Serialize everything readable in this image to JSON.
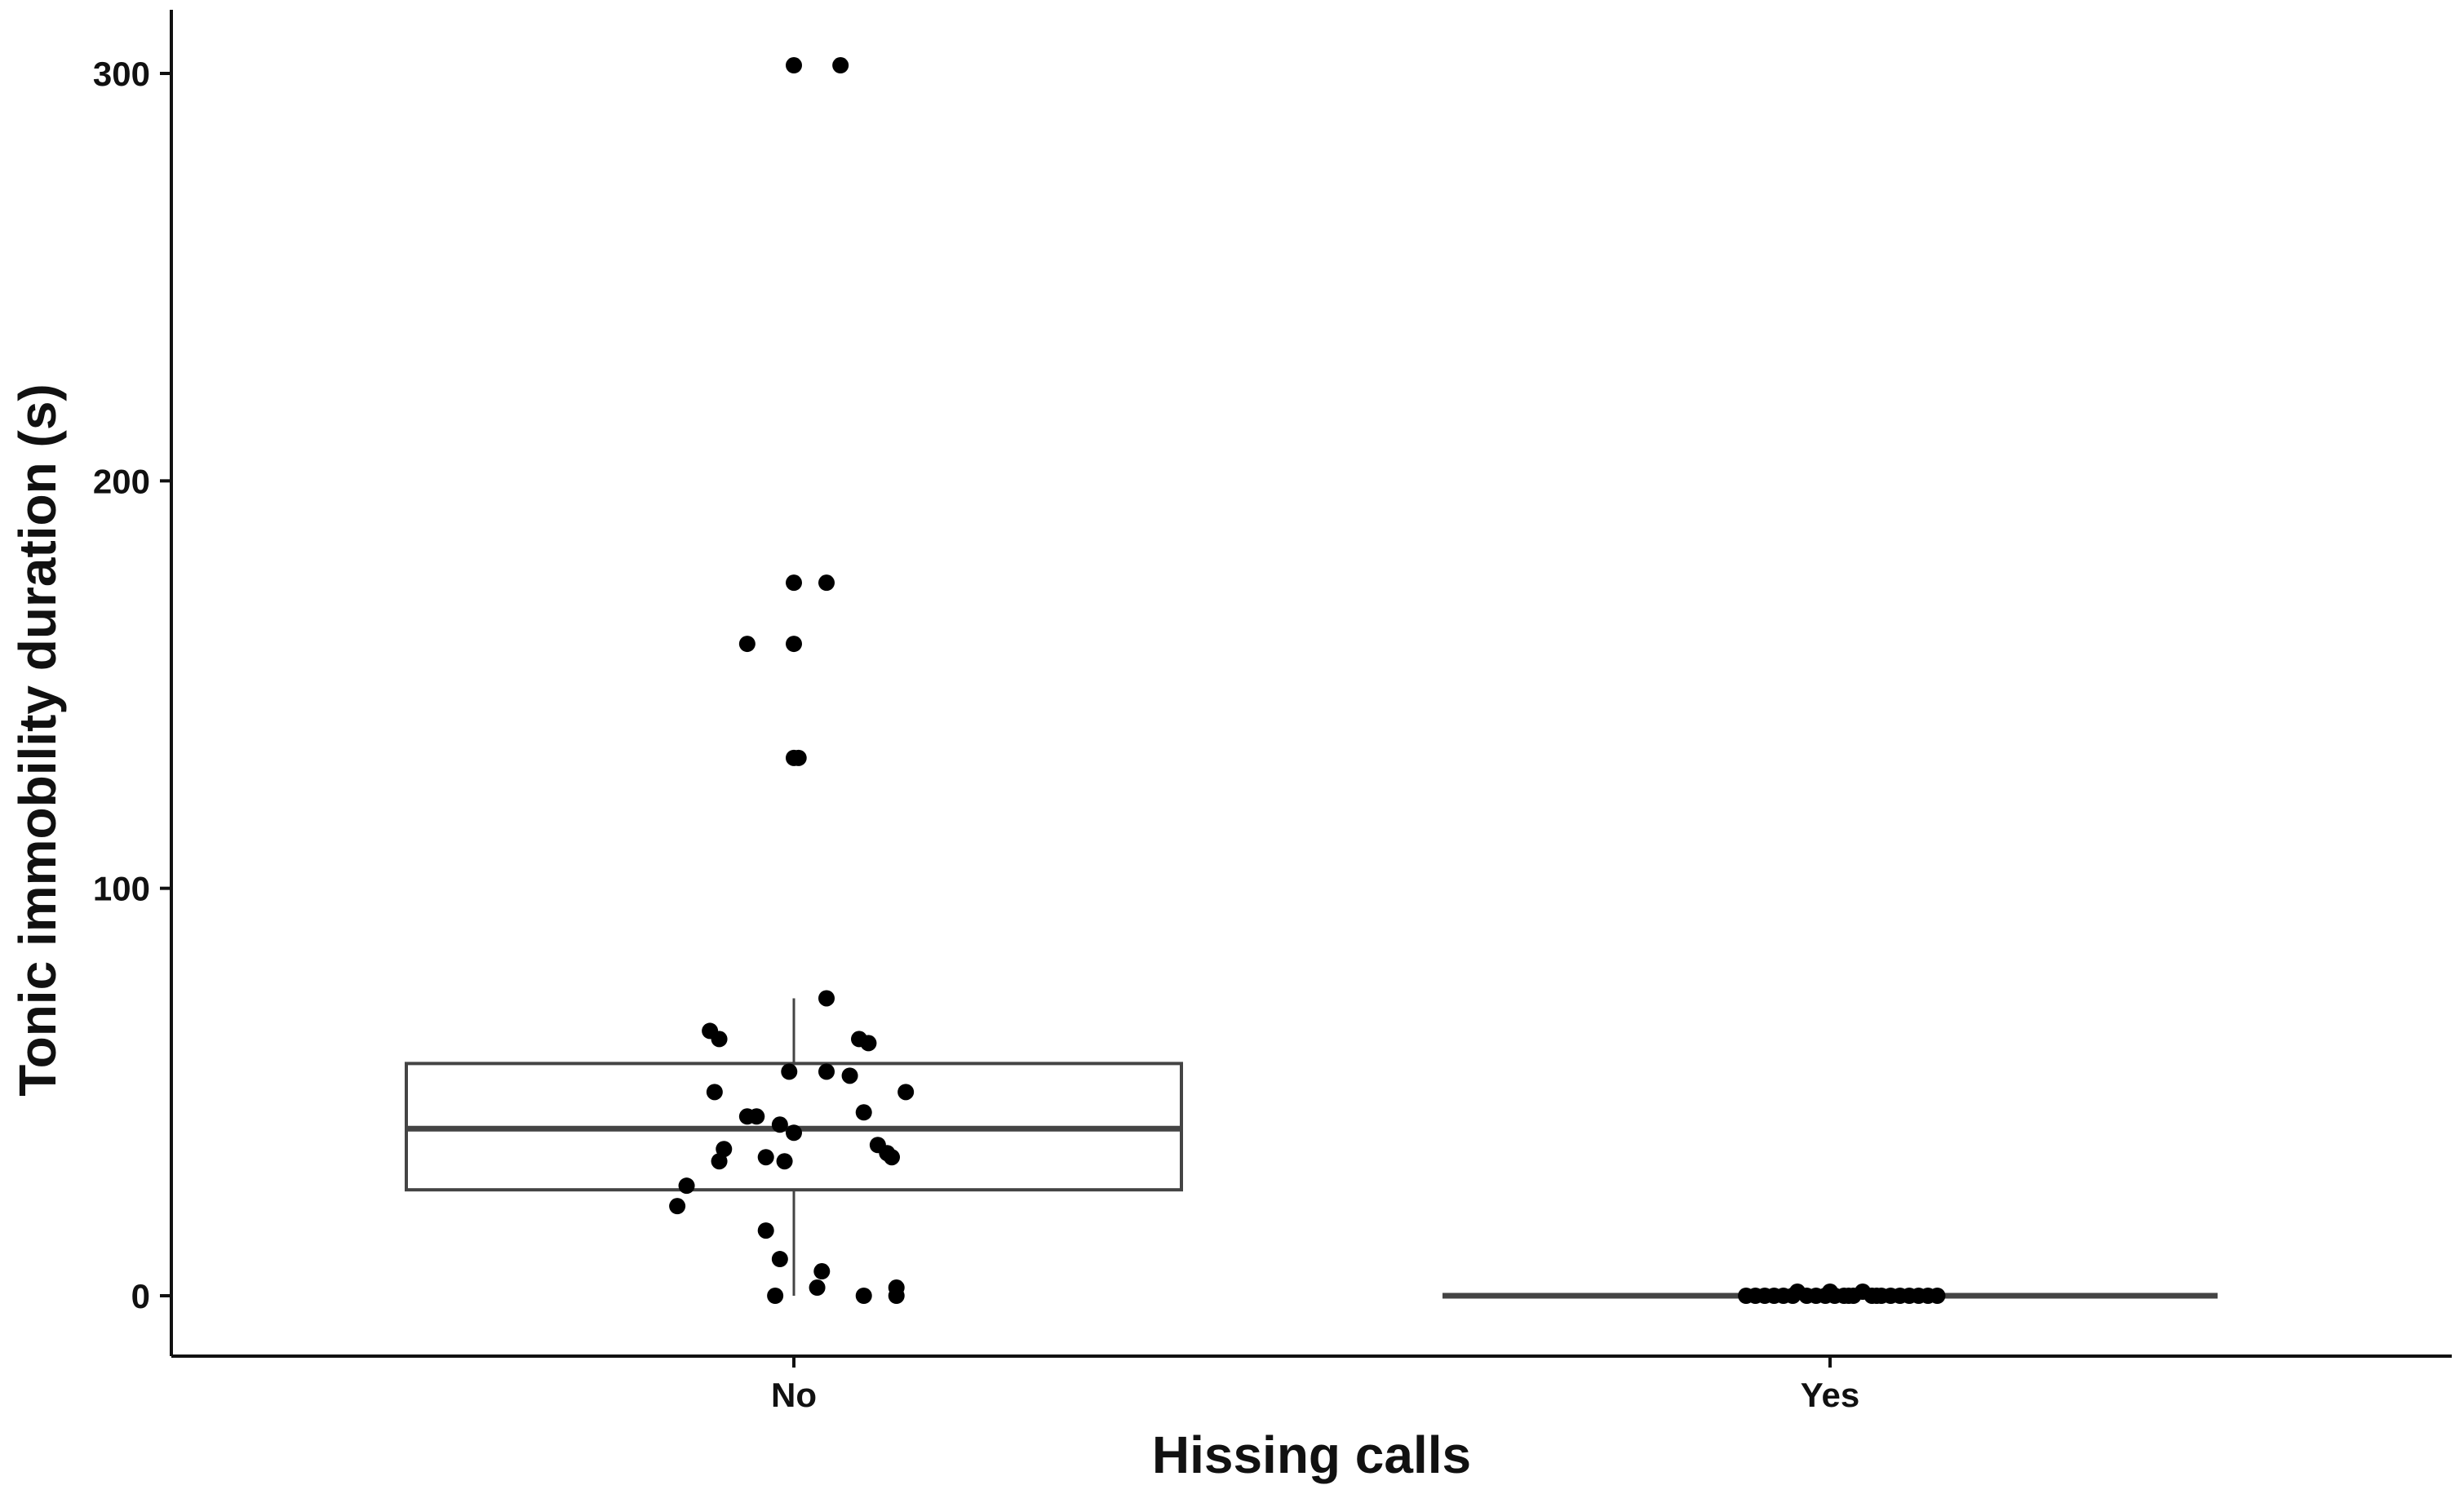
{
  "chart_data": {
    "type": "box",
    "title": "",
    "xlabel": "Hissing calls",
    "ylabel": "Tonic immobility duration (s)",
    "categories": [
      "No",
      "Yes"
    ],
    "ylim": [
      -15,
      318
    ],
    "yticks": [
      0,
      100,
      200,
      300
    ],
    "grid": false,
    "legend": "none",
    "colors": {
      "axis": "#111111",
      "box": "#444444",
      "point": "#000000"
    },
    "boxes": [
      {
        "category": "No",
        "whisker_low": 0,
        "q1": 26,
        "median": 41,
        "q3": 57,
        "whisker_high": 73
      },
      {
        "category": "Yes",
        "whisker_low": 0,
        "q1": 0,
        "median": 0,
        "q3": 0,
        "whisker_high": 0
      }
    ],
    "points": [
      {
        "category": "No",
        "jitter": 0.0,
        "y": 302
      },
      {
        "category": "No",
        "jitter": 0.1,
        "y": 302
      },
      {
        "category": "No",
        "jitter": 0.0,
        "y": 175
      },
      {
        "category": "No",
        "jitter": 0.07,
        "y": 175
      },
      {
        "category": "No",
        "jitter": -0.1,
        "y": 160
      },
      {
        "category": "No",
        "jitter": 0.0,
        "y": 160
      },
      {
        "category": "No",
        "jitter": 0.0,
        "y": 132
      },
      {
        "category": "No",
        "jitter": 0.01,
        "y": 132
      },
      {
        "category": "No",
        "jitter": 0.07,
        "y": 73
      },
      {
        "category": "No",
        "jitter": -0.18,
        "y": 65
      },
      {
        "category": "No",
        "jitter": -0.16,
        "y": 63
      },
      {
        "category": "No",
        "jitter": 0.14,
        "y": 63
      },
      {
        "category": "No",
        "jitter": 0.16,
        "y": 62
      },
      {
        "category": "No",
        "jitter": -0.01,
        "y": 55
      },
      {
        "category": "No",
        "jitter": 0.07,
        "y": 55
      },
      {
        "category": "No",
        "jitter": 0.12,
        "y": 54
      },
      {
        "category": "No",
        "jitter": -0.17,
        "y": 50
      },
      {
        "category": "No",
        "jitter": 0.24,
        "y": 50
      },
      {
        "category": "No",
        "jitter": -0.1,
        "y": 44
      },
      {
        "category": "No",
        "jitter": -0.08,
        "y": 44
      },
      {
        "category": "No",
        "jitter": 0.15,
        "y": 45
      },
      {
        "category": "No",
        "jitter": -0.03,
        "y": 42
      },
      {
        "category": "No",
        "jitter": 0.0,
        "y": 40
      },
      {
        "category": "No",
        "jitter": 0.18,
        "y": 37
      },
      {
        "category": "No",
        "jitter": -0.15,
        "y": 36
      },
      {
        "category": "No",
        "jitter": 0.2,
        "y": 35
      },
      {
        "category": "No",
        "jitter": 0.21,
        "y": 34
      },
      {
        "category": "No",
        "jitter": -0.16,
        "y": 33
      },
      {
        "category": "No",
        "jitter": -0.06,
        "y": 34
      },
      {
        "category": "No",
        "jitter": -0.02,
        "y": 33
      },
      {
        "category": "No",
        "jitter": -0.23,
        "y": 27
      },
      {
        "category": "No",
        "jitter": -0.25,
        "y": 22
      },
      {
        "category": "No",
        "jitter": -0.06,
        "y": 16
      },
      {
        "category": "No",
        "jitter": -0.03,
        "y": 9
      },
      {
        "category": "No",
        "jitter": 0.06,
        "y": 6
      },
      {
        "category": "No",
        "jitter": 0.05,
        "y": 2
      },
      {
        "category": "No",
        "jitter": 0.22,
        "y": 2
      },
      {
        "category": "No",
        "jitter": -0.04,
        "y": 0
      },
      {
        "category": "No",
        "jitter": 0.15,
        "y": 0
      },
      {
        "category": "No",
        "jitter": 0.22,
        "y": 0
      },
      {
        "category": "Yes",
        "jitter": -0.18,
        "y": 0
      },
      {
        "category": "Yes",
        "jitter": -0.16,
        "y": 0
      },
      {
        "category": "Yes",
        "jitter": -0.14,
        "y": 0
      },
      {
        "category": "Yes",
        "jitter": -0.12,
        "y": 0
      },
      {
        "category": "Yes",
        "jitter": -0.1,
        "y": 0
      },
      {
        "category": "Yes",
        "jitter": -0.07,
        "y": 1
      },
      {
        "category": "Yes",
        "jitter": -0.05,
        "y": 0
      },
      {
        "category": "Yes",
        "jitter": -0.03,
        "y": 0
      },
      {
        "category": "Yes",
        "jitter": -0.01,
        "y": 0
      },
      {
        "category": "Yes",
        "jitter": 0.01,
        "y": 0
      },
      {
        "category": "Yes",
        "jitter": 0.0,
        "y": 1
      },
      {
        "category": "Yes",
        "jitter": 0.03,
        "y": 0
      },
      {
        "category": "Yes",
        "jitter": 0.05,
        "y": 0
      },
      {
        "category": "Yes",
        "jitter": 0.07,
        "y": 1
      },
      {
        "category": "Yes",
        "jitter": 0.09,
        "y": 0
      },
      {
        "category": "Yes",
        "jitter": 0.11,
        "y": 0
      },
      {
        "category": "Yes",
        "jitter": 0.13,
        "y": 0
      },
      {
        "category": "Yes",
        "jitter": 0.15,
        "y": 0
      },
      {
        "category": "Yes",
        "jitter": 0.17,
        "y": 0
      },
      {
        "category": "Yes",
        "jitter": 0.19,
        "y": 0
      },
      {
        "category": "Yes",
        "jitter": 0.21,
        "y": 0
      },
      {
        "category": "Yes",
        "jitter": 0.23,
        "y": 0
      },
      {
        "category": "Yes",
        "jitter": -0.08,
        "y": 0
      },
      {
        "category": "Yes",
        "jitter": 0.04,
        "y": 0
      },
      {
        "category": "Yes",
        "jitter": 0.1,
        "y": 0
      }
    ]
  }
}
